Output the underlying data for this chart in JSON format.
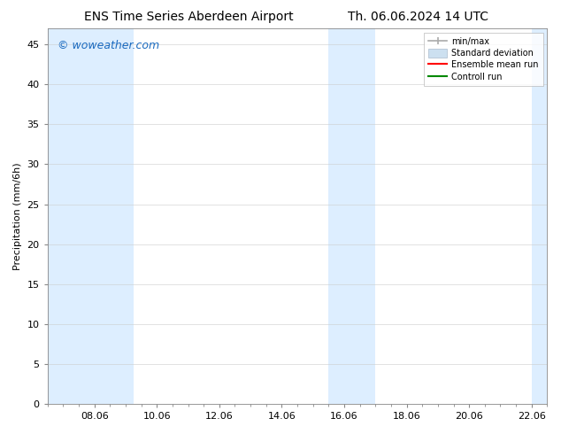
{
  "title_left": "ENS Time Series Aberdeen Airport",
  "title_right": "Th. 06.06.2024 14 UTC",
  "ylabel": "Precipitation (mm/6h)",
  "watermark": "© woweather.com",
  "background_color": "#ffffff",
  "plot_bg_color": "#ffffff",
  "ylim": [
    0,
    47
  ],
  "yticks": [
    0,
    5,
    10,
    15,
    20,
    25,
    30,
    35,
    40,
    45
  ],
  "xlim": [
    0,
    384
  ],
  "xtick_positions": [
    36,
    84,
    132,
    180,
    228,
    276,
    324,
    372
  ],
  "xtick_labels": [
    "08.06",
    "10.06",
    "12.06",
    "14.06",
    "16.06",
    "18.06",
    "20.06",
    "22.06"
  ],
  "shaded_bands": [
    {
      "x_start": 0,
      "x_end": 66,
      "color": "#ddeeff"
    },
    {
      "x_start": 216,
      "x_end": 252,
      "color": "#ddeeff"
    },
    {
      "x_start": 372,
      "x_end": 384,
      "color": "#ddeeff"
    }
  ],
  "legend_entries": [
    {
      "label": "min/max",
      "color": "#aaaaaa",
      "style": "minmax"
    },
    {
      "label": "Standard deviation",
      "color": "#cce0f0",
      "style": "fill"
    },
    {
      "label": "Ensemble mean run",
      "color": "#ff0000",
      "style": "line"
    },
    {
      "label": "Controll run",
      "color": "#008800",
      "style": "line"
    }
  ],
  "title_fontsize": 10,
  "axis_label_fontsize": 8,
  "tick_fontsize": 8,
  "watermark_color": "#1a6abf",
  "watermark_fontsize": 9,
  "legend_fontsize": 7
}
